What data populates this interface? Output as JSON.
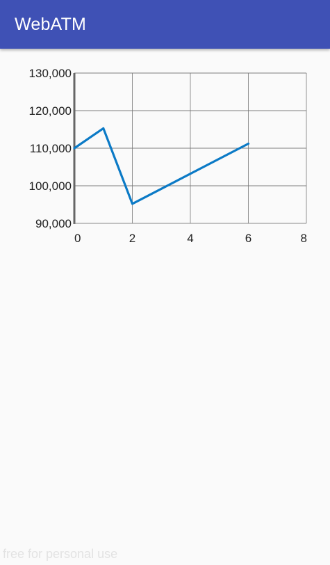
{
  "app_bar": {
    "title": "WebATM",
    "color": "#3f51b5"
  },
  "chart_data": {
    "type": "line",
    "series": [
      {
        "x": [
          0,
          1,
          2,
          6
        ],
        "y": [
          110000,
          115300,
          95200,
          111200
        ],
        "color": "#0b7ac6"
      }
    ],
    "xlim": [
      0,
      8
    ],
    "ylim": [
      90000,
      130000
    ],
    "x_ticks": [
      0,
      2,
      4,
      6,
      8
    ],
    "y_ticks": [
      90000,
      100000,
      110000,
      120000,
      130000
    ],
    "x_tick_labels": [
      "0",
      "2",
      "4",
      "6",
      "8"
    ],
    "y_tick_labels": [
      "90,000",
      "100,000",
      "110,000",
      "120,000",
      "130,000"
    ],
    "grid": true,
    "title": "",
    "xlabel": "",
    "ylabel": ""
  },
  "footer": {
    "watermark": "free for personal use"
  }
}
